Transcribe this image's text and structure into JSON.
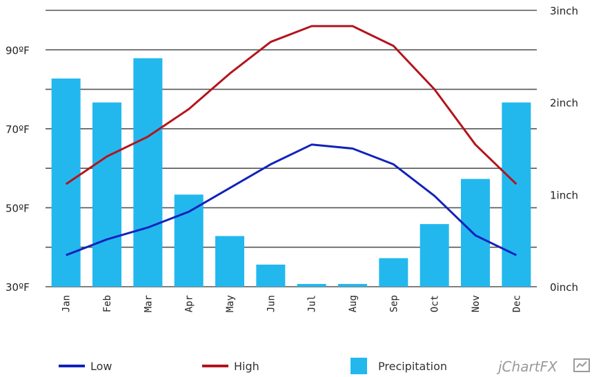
{
  "chart_data": {
    "type": "bar",
    "categories": [
      "Jan",
      "Feb",
      "Mar",
      "Apr",
      "May",
      "Jun",
      "Jul",
      "Aug",
      "Sep",
      "Oct",
      "Nov",
      "Dec"
    ],
    "bar_series": {
      "name": "Precipitation",
      "axis": "right",
      "color": "#22b8ee",
      "values": [
        2.26,
        2.0,
        2.48,
        1.0,
        0.55,
        0.24,
        0.03,
        0.03,
        0.31,
        0.68,
        1.17,
        2.0
      ]
    },
    "line_series": [
      {
        "name": "Low",
        "axis": "left",
        "color": "#1122bb",
        "values": [
          38,
          42,
          45,
          49,
          55,
          61,
          66,
          65,
          61,
          53,
          43,
          38
        ]
      },
      {
        "name": "High",
        "axis": "left",
        "color": "#b3141c",
        "values": [
          56,
          63,
          68,
          75,
          84,
          92,
          96,
          96,
          91,
          80,
          66,
          56
        ]
      }
    ],
    "left_axis": {
      "min": 30,
      "max": 100,
      "gridline_step": 10,
      "ticks": [
        30,
        50,
        70,
        90
      ],
      "tick_labels": [
        "30ºF",
        "50ºF",
        "70ºF",
        "90ºF"
      ]
    },
    "right_axis": {
      "min": 0,
      "max": 3,
      "ticks": [
        0,
        1,
        2,
        3
      ],
      "tick_labels": [
        "0inch",
        "1inch",
        "2inch",
        "3inch"
      ]
    },
    "grid": true,
    "legend_position": "bottom",
    "legend": [
      {
        "label": "Low",
        "marker": "line",
        "color": "#1122bb"
      },
      {
        "label": "High",
        "marker": "line",
        "color": "#b3141c"
      },
      {
        "label": "Precipitation",
        "marker": "box",
        "color": "#22b8ee"
      }
    ],
    "brand": "jChartFX"
  }
}
